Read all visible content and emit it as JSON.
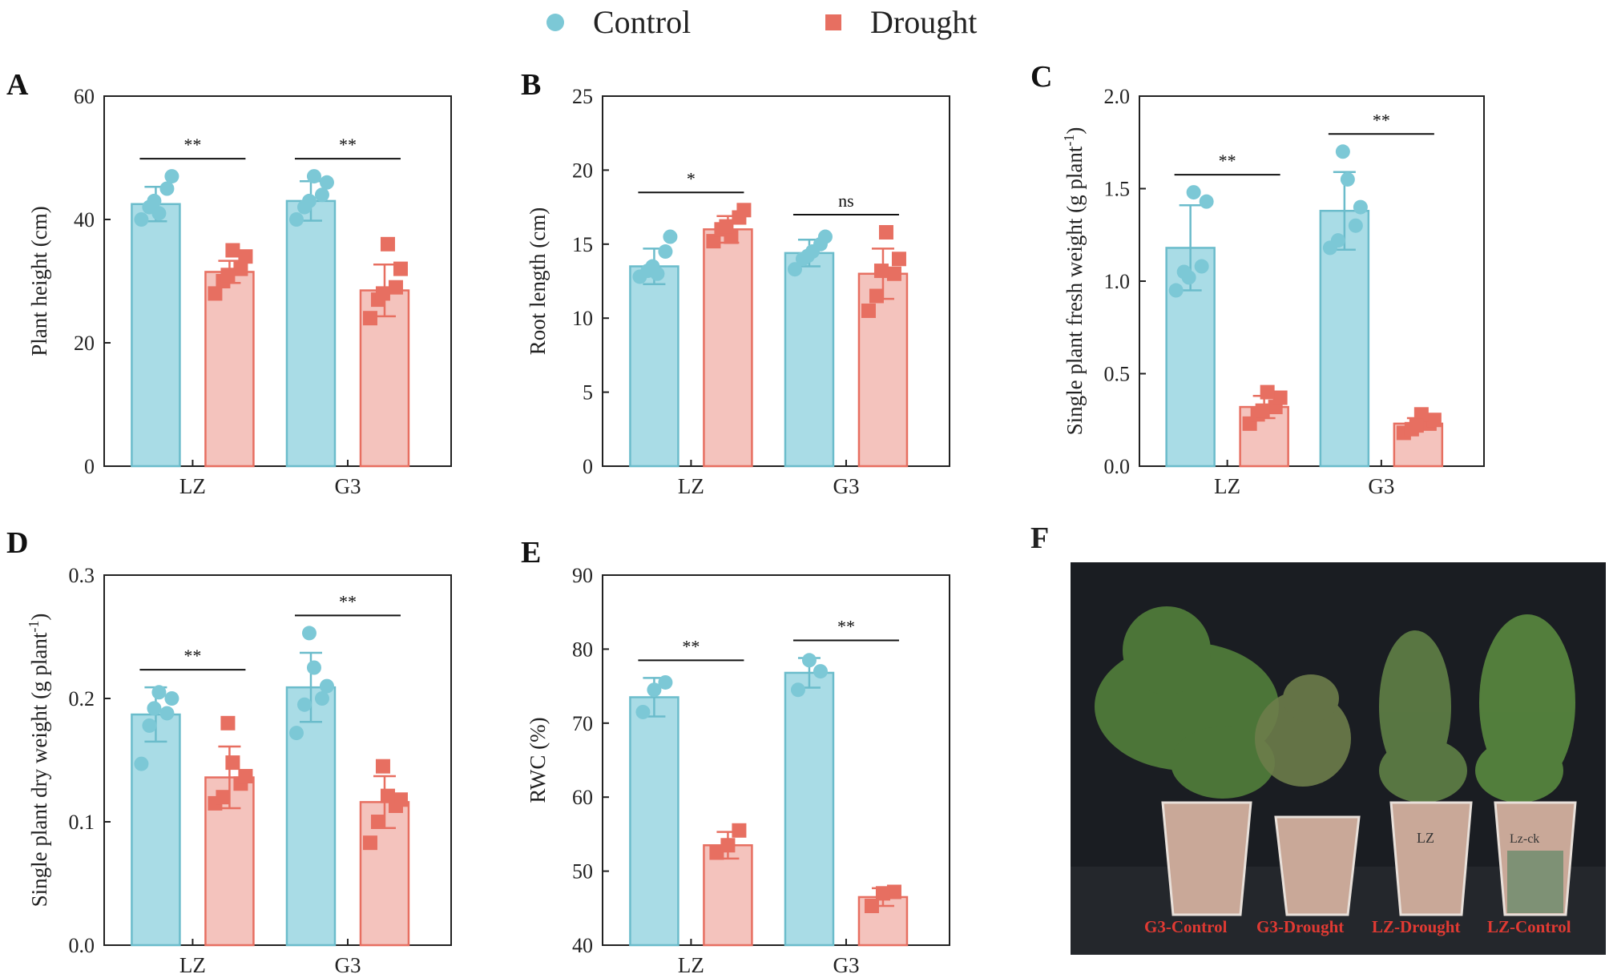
{
  "legend": [
    {
      "label": "Control",
      "color": "#7cc8d6",
      "marker": "circle"
    },
    {
      "label": "Drought",
      "color": "#e76f61",
      "marker": "square"
    }
  ],
  "colors": {
    "control_fill": "#a9dce6",
    "control_edge": "#6bbccb",
    "drought_fill": "#f4c3bd",
    "drought_edge": "#e76f61"
  },
  "chart_data": [
    {
      "panel": "A",
      "type": "bar",
      "ylabel": "Plant height (cm)",
      "categories": [
        "LZ",
        "G3"
      ],
      "ylim": [
        0,
        60
      ],
      "yticks": [
        "0",
        "20",
        "40",
        "60"
      ],
      "ytick_values": [
        0,
        20,
        40,
        60
      ],
      "series": [
        {
          "name": "Control",
          "values": [
            42.5,
            43.0
          ],
          "err": [
            2.8,
            3.2
          ],
          "points": [
            [
              40,
              42,
              45,
              47,
              41,
              43
            ],
            [
              40,
              42,
              44,
              46,
              47,
              43
            ]
          ]
        },
        {
          "name": "Drought",
          "values": [
            31.5,
            28.5
          ],
          "err": [
            1.8,
            4.2
          ],
          "points": [
            [
              28,
              30,
              32,
              34,
              35,
              31
            ],
            [
              24,
              27,
              29,
              32,
              36,
              28
            ]
          ]
        }
      ],
      "significance": [
        "**",
        "**"
      ]
    },
    {
      "panel": "B",
      "type": "bar",
      "ylabel": "Root length (cm)",
      "categories": [
        "LZ",
        "G3"
      ],
      "ylim": [
        0,
        25
      ],
      "yticks": [
        "0",
        "5",
        "10",
        "15",
        "20",
        "25"
      ],
      "ytick_values": [
        0,
        5,
        10,
        15,
        20,
        25
      ],
      "series": [
        {
          "name": "Control",
          "values": [
            13.5,
            14.4
          ],
          "err": [
            1.2,
            0.9
          ],
          "points": [
            [
              12.8,
              13.2,
              14.5,
              15.5,
              13.0,
              13.5
            ],
            [
              13.3,
              14.0,
              15.0,
              15.5,
              14.5,
              14.2
            ]
          ]
        },
        {
          "name": "Drought",
          "values": [
            16.0,
            13.0
          ],
          "err": [
            0.9,
            1.7
          ],
          "points": [
            [
              15.2,
              16.0,
              16.8,
              17.3,
              15.5,
              16.2
            ],
            [
              10.5,
              11.5,
              13.0,
              14.0,
              15.8,
              13.2
            ]
          ]
        }
      ],
      "significance": [
        "*",
        "ns"
      ]
    },
    {
      "panel": "C",
      "type": "bar",
      "ylabel": "Single plant fresh weight (g plant-1)",
      "categories": [
        "LZ",
        "G3"
      ],
      "ylim": [
        0,
        2.0
      ],
      "yticks": [
        "0.0",
        "0.5",
        "1.0",
        "1.5",
        "2.0"
      ],
      "ytick_values": [
        0,
        0.5,
        1.0,
        1.5,
        2.0
      ],
      "series": [
        {
          "name": "Control",
          "values": [
            1.18,
            1.38
          ],
          "err": [
            0.23,
            0.21
          ],
          "points": [
            [
              0.95,
              1.05,
              1.08,
              1.43,
              1.48,
              1.02
            ],
            [
              1.18,
              1.22,
              1.3,
              1.4,
              1.55,
              1.7
            ]
          ]
        },
        {
          "name": "Drought",
          "values": [
            0.32,
            0.23
          ],
          "err": [
            0.06,
            0.03
          ],
          "points": [
            [
              0.23,
              0.28,
              0.32,
              0.37,
              0.4,
              0.3
            ],
            [
              0.18,
              0.2,
              0.23,
              0.25,
              0.28,
              0.22
            ]
          ]
        }
      ],
      "significance": [
        "**",
        "**"
      ]
    },
    {
      "panel": "D",
      "type": "bar",
      "ylabel": "Single plant dry weight (g plant-1)",
      "categories": [
        "LZ",
        "G3"
      ],
      "ylim": [
        0,
        0.3
      ],
      "yticks": [
        "0.0",
        "0.1",
        "0.2",
        "0.3"
      ],
      "ytick_values": [
        0,
        0.1,
        0.2,
        0.3
      ],
      "series": [
        {
          "name": "Control",
          "values": [
            0.187,
            0.209
          ],
          "err": [
            0.022,
            0.028
          ],
          "points": [
            [
              0.147,
              0.178,
              0.188,
              0.2,
              0.205,
              0.192
            ],
            [
              0.172,
              0.195,
              0.2,
              0.21,
              0.225,
              0.253
            ]
          ]
        },
        {
          "name": "Drought",
          "values": [
            0.136,
            0.116
          ],
          "err": [
            0.025,
            0.021
          ],
          "points": [
            [
              0.115,
              0.12,
              0.131,
              0.137,
              0.148,
              0.18
            ],
            [
              0.083,
              0.1,
              0.113,
              0.118,
              0.121,
              0.145
            ]
          ]
        }
      ],
      "significance": [
        "**",
        "**"
      ]
    },
    {
      "panel": "E",
      "type": "bar",
      "ylabel": "RWC (%)",
      "categories": [
        "LZ",
        "G3"
      ],
      "ylim": [
        40,
        90
      ],
      "yticks": [
        "40",
        "50",
        "60",
        "70",
        "80",
        "90"
      ],
      "ytick_values": [
        40,
        50,
        60,
        70,
        80,
        90
      ],
      "series": [
        {
          "name": "Control",
          "values": [
            73.5,
            76.8
          ],
          "err": [
            2.6,
            2.0
          ],
          "points": [
            [
              71.5,
              75.5,
              74.5
            ],
            [
              74.5,
              77.0,
              78.5
            ]
          ]
        },
        {
          "name": "Drought",
          "values": [
            53.5,
            46.5
          ],
          "err": [
            1.8,
            1.2
          ],
          "points": [
            [
              52.5,
              55.5,
              53.5
            ],
            [
              45.3,
              47.2,
              47.0
            ]
          ]
        }
      ],
      "significance": [
        "**",
        "**"
      ]
    }
  ],
  "photo": {
    "panel": "F",
    "labels": [
      "G3-Control",
      "G3-Drought",
      "LZ-Drought",
      "LZ-Control"
    ],
    "cup_marks": [
      "LZ",
      "Lz-ck"
    ],
    "background": "#1c1f24",
    "label_color": "#e03a33"
  }
}
